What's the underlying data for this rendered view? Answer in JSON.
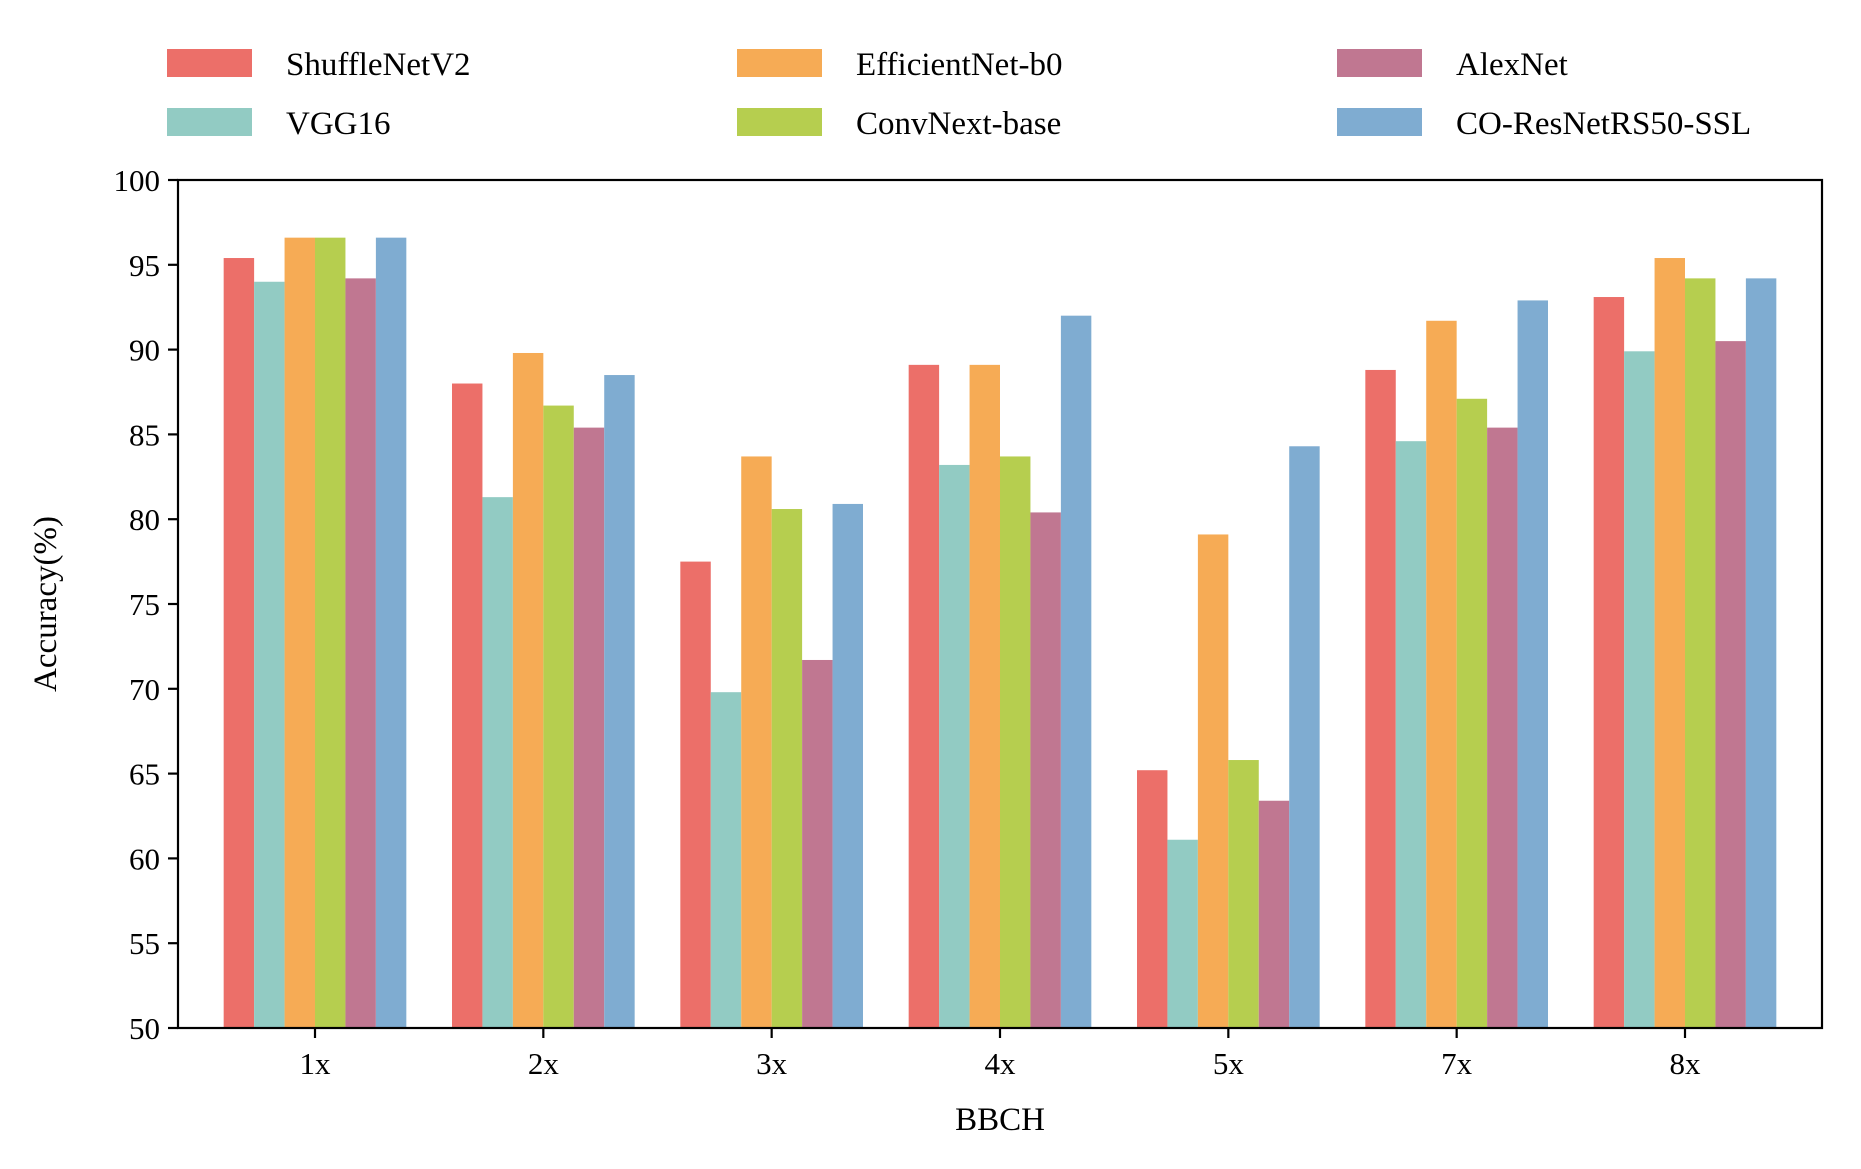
{
  "chart_data": {
    "type": "bar",
    "title": "",
    "xlabel": "BBCH",
    "ylabel": "Accuracy(%)",
    "ylim": [
      50,
      100
    ],
    "yticks": [
      50,
      55,
      60,
      65,
      70,
      75,
      80,
      85,
      90,
      95,
      100
    ],
    "grid": false,
    "legend_position": "top",
    "categories": [
      "1x",
      "2x",
      "3x",
      "4x",
      "5x",
      "7x",
      "8x"
    ],
    "series": [
      {
        "name": "ShuffleNetV2",
        "color": "#ec6f69",
        "values": [
          95.4,
          88.0,
          77.5,
          89.1,
          65.2,
          88.8,
          93.1
        ]
      },
      {
        "name": "VGG16",
        "color": "#92cbc3",
        "values": [
          94.0,
          81.3,
          69.8,
          83.2,
          61.1,
          84.6,
          89.9
        ]
      },
      {
        "name": "EfficientNet-b0",
        "color": "#f6ab55",
        "values": [
          96.6,
          89.8,
          83.7,
          89.1,
          79.1,
          91.7,
          95.4
        ]
      },
      {
        "name": "ConvNext-base",
        "color": "#b6ce4f",
        "values": [
          96.6,
          86.7,
          80.6,
          83.7,
          65.8,
          87.1,
          94.2
        ]
      },
      {
        "name": "AlexNet",
        "color": "#c07791",
        "values": [
          94.2,
          85.4,
          71.7,
          80.4,
          63.4,
          85.4,
          90.5
        ]
      },
      {
        "name": "CO-ResNetRS50-SSL",
        "color": "#7facd1",
        "values": [
          96.6,
          88.5,
          80.9,
          92.0,
          84.3,
          92.9,
          94.2
        ]
      }
    ]
  }
}
